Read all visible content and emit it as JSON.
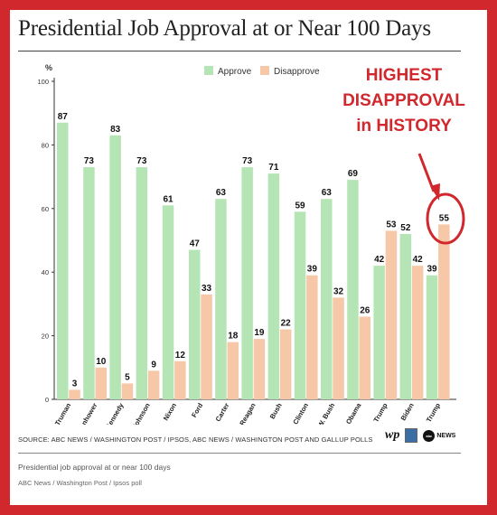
{
  "title": "Presidential Job Approval at or Near 100 Days",
  "source": "SOURCE: ABC NEWS / WASHINGTON POST / IPSOS, ABC NEWS / WASHINGTON POST AND GALLUP POLLS",
  "caption": "Presidential job approval at or near 100 days",
  "credit": "ABC News / Washington Post / Ipsos poll",
  "logos": {
    "wp": "wp",
    "abc": "NEWS",
    "abc_mark": "abc"
  },
  "annotation": {
    "lines": [
      "HIGHEST",
      "DISAPPROVAL",
      "in HISTORY"
    ],
    "color": "#d0282d"
  },
  "colors": {
    "approve": "#b5e5b5",
    "disapprove": "#f6c8a8",
    "frame": "#d0282d"
  },
  "chart_data": {
    "type": "bar",
    "title": "Presidential Job Approval at or Near 100 Days",
    "ylabel": "%",
    "ylim": [
      0,
      100
    ],
    "yticks": [
      0,
      20,
      40,
      60,
      80,
      100
    ],
    "grid": false,
    "legend": "top-center",
    "categories": [
      "Truman",
      "Eisenhower",
      "Kennedy",
      "Johnson",
      "Nixon",
      "Ford",
      "Carter",
      "Reagan",
      "Bush",
      "Clinton",
      "G.W. Bush",
      "Obama",
      "Trump",
      "Biden",
      "Trump"
    ],
    "series": [
      {
        "name": "Approve",
        "values": [
          87,
          73,
          83,
          73,
          61,
          47,
          63,
          73,
          71,
          59,
          63,
          69,
          42,
          52,
          39
        ]
      },
      {
        "name": "Disapprove",
        "values": [
          3,
          10,
          5,
          9,
          12,
          33,
          18,
          19,
          22,
          39,
          32,
          26,
          53,
          42,
          55
        ]
      }
    ]
  }
}
